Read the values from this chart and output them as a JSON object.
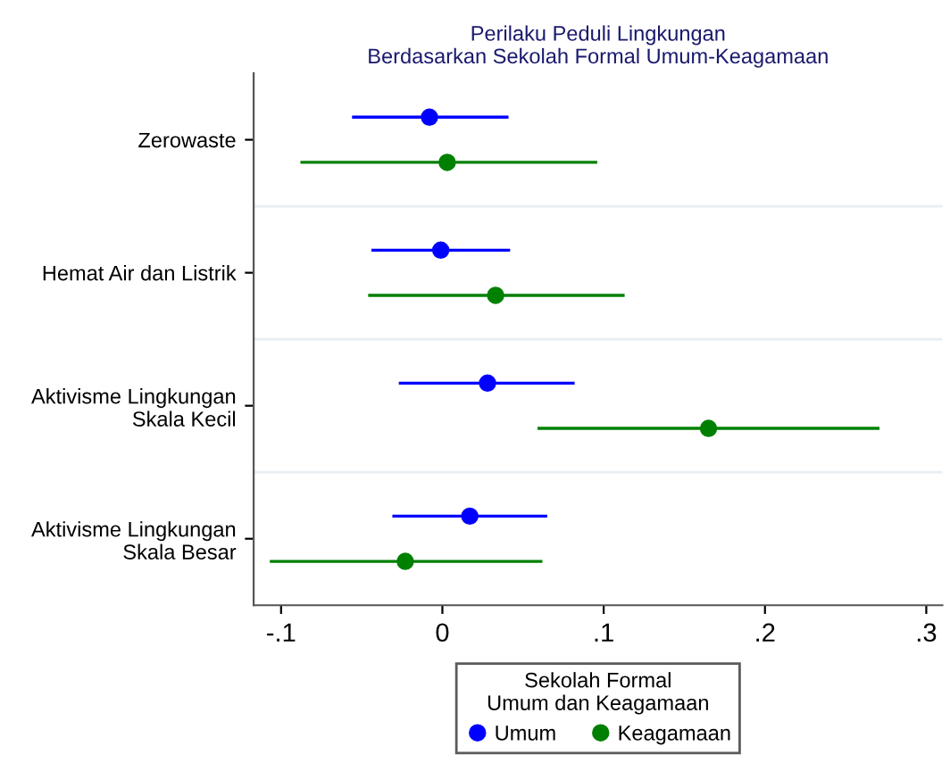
{
  "chart_data": {
    "type": "scatter",
    "orientation": "horizontal",
    "title": "Perilaku Peduli Lingkungan\nBerdasarkan Sekolah Formal Umum-Keagamaan",
    "categories": [
      "Zerowaste",
      "Hemat Air dan Listrik",
      "Aktivisme Lingkungan\nSkala Kecil",
      "Aktivisme Lingkungan\nSkala Besar"
    ],
    "series": [
      {
        "name": "Umum",
        "color": "#0000ff",
        "values": [
          -0.008,
          -0.001,
          0.028,
          0.017
        ],
        "errors": [
          [
            -0.056,
            0.041
          ],
          [
            -0.044,
            0.042
          ],
          [
            -0.027,
            0.082
          ],
          [
            -0.031,
            0.065
          ]
        ]
      },
      {
        "name": "Keagamaan",
        "color": "#008000",
        "values": [
          0.003,
          0.033,
          0.165,
          -0.023
        ],
        "errors": [
          [
            -0.088,
            0.096
          ],
          [
            -0.046,
            0.113
          ],
          [
            0.059,
            0.271
          ],
          [
            -0.107,
            0.062
          ]
        ]
      }
    ],
    "xlim": [
      -0.117,
      0.31
    ],
    "xticks": [
      {
        "value": -0.1,
        "label": "-.1"
      },
      0,
      {
        "value": 0.1,
        "label": ".1"
      },
      {
        "value": 0.2,
        "label": ".2"
      },
      {
        "value": 0.3,
        "label": ".3"
      }
    ],
    "legend": "bottom",
    "legend_title": "Sekolah Formal\nUmum dan Keagamaan",
    "marker": "circle",
    "grid": "y"
  }
}
